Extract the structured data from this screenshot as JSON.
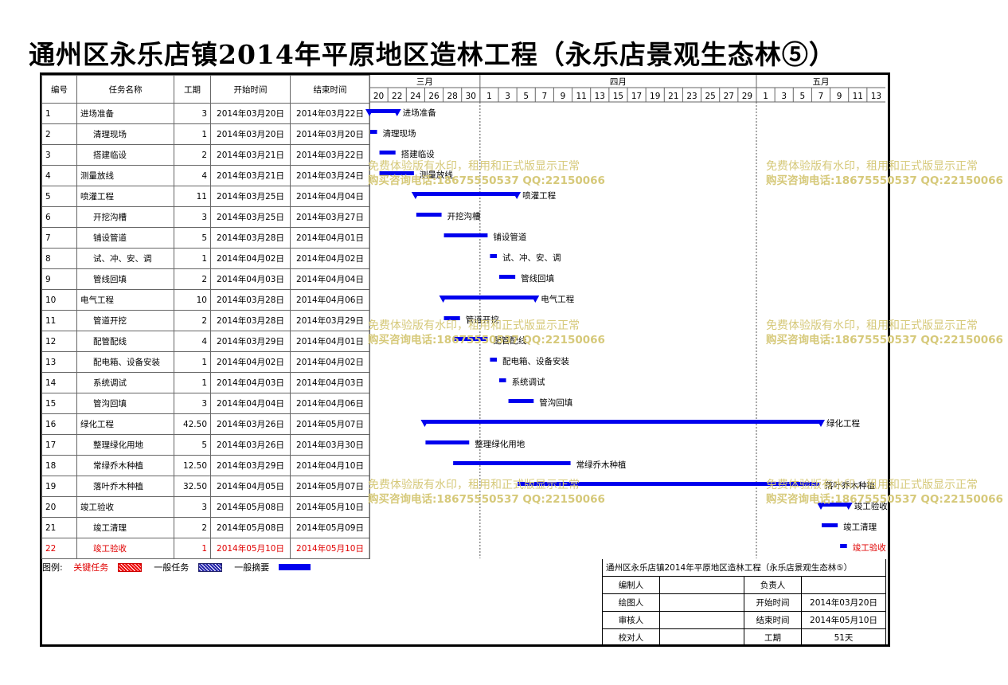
{
  "title": "通州区永乐店镇2014年平原地区造林工程（永乐店景观生态林⑤）",
  "columns": {
    "id": "编号",
    "name": "任务名称",
    "duration": "工期",
    "start": "开始时间",
    "end": "结束时间"
  },
  "months": [
    {
      "label": "三月",
      "start": "2014-03-20",
      "end": "2014-03-31"
    },
    {
      "label": "四月",
      "start": "2014-04-01",
      "end": "2014-04-30"
    },
    {
      "label": "五月",
      "start": "2014-05-01",
      "end": "2014-05-14"
    }
  ],
  "day_ticks": [
    "20",
    "22",
    "24",
    "26",
    "28",
    "30",
    "1",
    "3",
    "5",
    "7",
    "9",
    "11",
    "13",
    "15",
    "17",
    "19",
    "21",
    "23",
    "25",
    "27",
    "29",
    "1",
    "3",
    "5",
    "7",
    "9",
    "11",
    "13"
  ],
  "tasks": [
    {
      "id": "1",
      "name": "进场准备",
      "duration": "3",
      "start": "2014年03月20日",
      "end": "2014年03月22日",
      "level": 0
    },
    {
      "id": "2",
      "name": "清理现场",
      "duration": "1",
      "start": "2014年03月20日",
      "end": "2014年03月20日",
      "level": 1
    },
    {
      "id": "3",
      "name": "搭建临设",
      "duration": "2",
      "start": "2014年03月21日",
      "end": "2014年03月22日",
      "level": 1
    },
    {
      "id": "4",
      "name": "测量放线",
      "duration": "4",
      "start": "2014年03月21日",
      "end": "2014年03月24日",
      "level": 0
    },
    {
      "id": "5",
      "name": "喷灌工程",
      "duration": "11",
      "start": "2014年03月25日",
      "end": "2014年04月04日",
      "level": 0
    },
    {
      "id": "6",
      "name": "开挖沟槽",
      "duration": "3",
      "start": "2014年03月25日",
      "end": "2014年03月27日",
      "level": 1
    },
    {
      "id": "7",
      "name": "铺设管道",
      "duration": "5",
      "start": "2014年03月28日",
      "end": "2014年04月01日",
      "level": 1
    },
    {
      "id": "8",
      "name": "试、冲、安、调",
      "duration": "1",
      "start": "2014年04月02日",
      "end": "2014年04月02日",
      "level": 1
    },
    {
      "id": "9",
      "name": "管线回填",
      "duration": "2",
      "start": "2014年04月03日",
      "end": "2014年04月04日",
      "level": 1
    },
    {
      "id": "10",
      "name": "电气工程",
      "duration": "10",
      "start": "2014年03月28日",
      "end": "2014年04月06日",
      "level": 0
    },
    {
      "id": "11",
      "name": "管道开挖",
      "duration": "2",
      "start": "2014年03月28日",
      "end": "2014年03月29日",
      "level": 1
    },
    {
      "id": "12",
      "name": "配管配线",
      "duration": "4",
      "start": "2014年03月29日",
      "end": "2014年04月01日",
      "level": 1
    },
    {
      "id": "13",
      "name": "配电箱、设备安装",
      "duration": "1",
      "start": "2014年04月02日",
      "end": "2014年04月02日",
      "level": 1
    },
    {
      "id": "14",
      "name": "系统调试",
      "duration": "1",
      "start": "2014年04月03日",
      "end": "2014年04月03日",
      "level": 1
    },
    {
      "id": "15",
      "name": "管沟回填",
      "duration": "3",
      "start": "2014年04月04日",
      "end": "2014年04月06日",
      "level": 1
    },
    {
      "id": "16",
      "name": "绿化工程",
      "duration": "42.50",
      "start": "2014年03月26日",
      "end": "2014年05月07日",
      "level": 0
    },
    {
      "id": "17",
      "name": "整理绿化用地",
      "duration": "5",
      "start": "2014年03月26日",
      "end": "2014年03月30日",
      "level": 1
    },
    {
      "id": "18",
      "name": "常绿乔木种植",
      "duration": "12.50",
      "start": "2014年03月29日",
      "end": "2014年04月10日",
      "level": 1
    },
    {
      "id": "19",
      "name": "落叶乔木种植",
      "duration": "32.50",
      "start": "2014年04月05日",
      "end": "2014年05月07日",
      "level": 1
    },
    {
      "id": "20",
      "name": "竣工验收",
      "duration": "3",
      "start": "2014年05月08日",
      "end": "2014年05月10日",
      "level": 0
    },
    {
      "id": "21",
      "name": "竣工清理",
      "duration": "2",
      "start": "2014年05月08日",
      "end": "2014年05月09日",
      "level": 1
    },
    {
      "id": "22",
      "name": "竣工验收",
      "duration": "1",
      "start": "2014年05月10日",
      "end": "2014年05月10日",
      "level": 1,
      "critical": true
    }
  ],
  "chart_data": {
    "type": "gantt",
    "title": "通州区永乐店镇2014年平原地区造林工程（永乐店景观生态林⑤）",
    "date_range": [
      "2014-03-20",
      "2014-05-14"
    ],
    "tasks": [
      {
        "id": "1",
        "start": "2014-03-20",
        "end": "2014-03-22",
        "summary": true
      },
      {
        "id": "2",
        "start": "2014-03-20",
        "end": "2014-03-20"
      },
      {
        "id": "3",
        "start": "2014-03-21",
        "end": "2014-03-22"
      },
      {
        "id": "4",
        "start": "2014-03-21",
        "end": "2014-03-24"
      },
      {
        "id": "5",
        "start": "2014-03-25",
        "end": "2014-04-04",
        "summary": true
      },
      {
        "id": "6",
        "start": "2014-03-25",
        "end": "2014-03-27"
      },
      {
        "id": "7",
        "start": "2014-03-28",
        "end": "2014-04-01"
      },
      {
        "id": "8",
        "start": "2014-04-02",
        "end": "2014-04-02"
      },
      {
        "id": "9",
        "start": "2014-04-03",
        "end": "2014-04-04"
      },
      {
        "id": "10",
        "start": "2014-03-28",
        "end": "2014-04-06",
        "summary": true
      },
      {
        "id": "11",
        "start": "2014-03-28",
        "end": "2014-03-29"
      },
      {
        "id": "12",
        "start": "2014-03-29",
        "end": "2014-04-01"
      },
      {
        "id": "13",
        "start": "2014-04-02",
        "end": "2014-04-02"
      },
      {
        "id": "14",
        "start": "2014-04-03",
        "end": "2014-04-03"
      },
      {
        "id": "15",
        "start": "2014-04-04",
        "end": "2014-04-06"
      },
      {
        "id": "16",
        "start": "2014-03-26",
        "end": "2014-05-07",
        "summary": true
      },
      {
        "id": "17",
        "start": "2014-03-26",
        "end": "2014-03-30"
      },
      {
        "id": "18",
        "start": "2014-03-29",
        "end": "2014-04-10"
      },
      {
        "id": "19",
        "start": "2014-04-05",
        "end": "2014-05-07"
      },
      {
        "id": "20",
        "start": "2014-05-08",
        "end": "2014-05-10",
        "summary": true
      },
      {
        "id": "21",
        "start": "2014-05-08",
        "end": "2014-05-09"
      },
      {
        "id": "22",
        "start": "2014-05-10",
        "end": "2014-05-10",
        "critical": true
      }
    ],
    "colors": {
      "bar": "#0000ee",
      "critical_text": "#e00000",
      "month_divider": "#555555"
    }
  },
  "legend": {
    "label": "图例:",
    "critical": "关键任务",
    "normal": "一般任务",
    "summary": "一般摘要"
  },
  "info": {
    "project": "通州区永乐店镇2014年平原地区造林工程（永乐店景观生态林⑤）",
    "editor_label": "编制人",
    "editor": "",
    "owner_label": "负责人",
    "owner": "",
    "drawer_label": "绘图人",
    "drawer": "",
    "start_label": "开始时间",
    "start": "2014年03月20日",
    "reviewer_label": "审核人",
    "reviewer": "",
    "end_label": "结束时间",
    "end": "2014年05月10日",
    "checker_label": "校对人",
    "checker": "",
    "duration_label": "工期",
    "duration": "51天"
  },
  "watermark": {
    "line1": "免费体验版有水印，租用和正式版显示正常",
    "line2": "购买咨询电话:18675550537 QQ:22150066"
  }
}
